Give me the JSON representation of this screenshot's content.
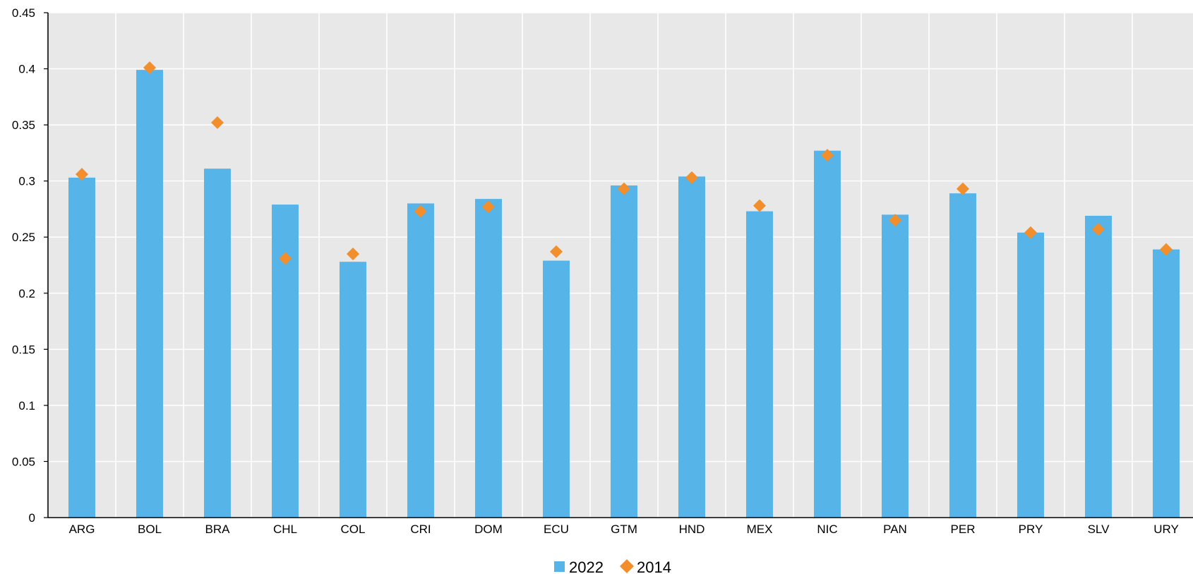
{
  "chart_data": {
    "type": "bar",
    "categories": [
      "ARG",
      "BOL",
      "BRA",
      "CHL",
      "COL",
      "CRI",
      "DOM",
      "ECU",
      "GTM",
      "HND",
      "MEX",
      "NIC",
      "PAN",
      "PER",
      "PRY",
      "SLV",
      "URY"
    ],
    "series": [
      {
        "name": "2022",
        "type": "bar",
        "color": "#56b4e9",
        "values": [
          0.303,
          0.399,
          0.311,
          0.279,
          0.228,
          0.28,
          0.284,
          0.229,
          0.296,
          0.304,
          0.273,
          0.327,
          0.27,
          0.289,
          0.254,
          0.269,
          0.239
        ]
      },
      {
        "name": "2014",
        "type": "marker",
        "marker": "diamond",
        "color": "#f28e2b",
        "values": [
          0.306,
          0.401,
          0.352,
          0.231,
          0.235,
          0.273,
          0.277,
          0.237,
          0.293,
          0.303,
          0.278,
          0.323,
          0.265,
          0.293,
          0.254,
          0.257,
          0.239
        ]
      }
    ],
    "yticks": [
      "0",
      "0.05",
      "0.1",
      "0.15",
      "0.2",
      "0.25",
      "0.3",
      "0.35",
      "0.4",
      "0.45"
    ],
    "ylim": [
      0,
      0.45
    ],
    "grid": true,
    "legend_position": "bottom-center",
    "plot_background": "#e8e8e8"
  }
}
